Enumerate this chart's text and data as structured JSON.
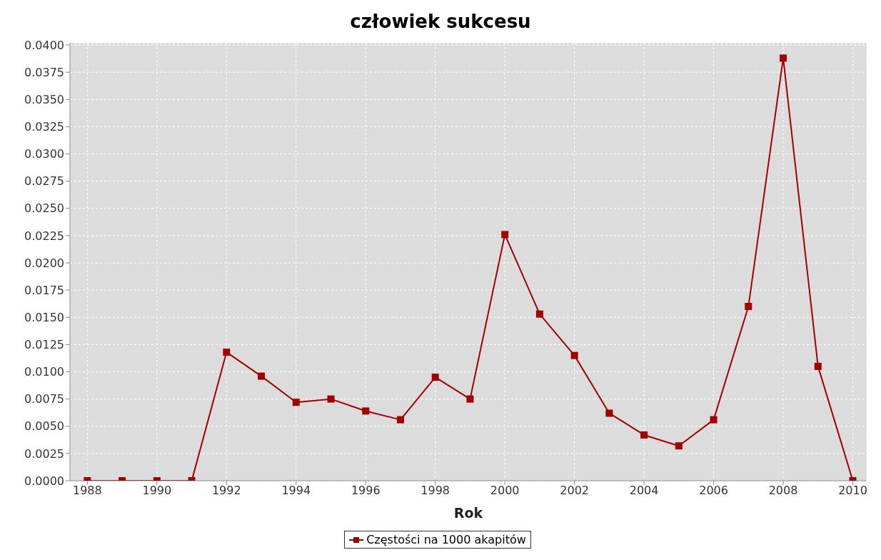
{
  "chart_data": {
    "type": "line",
    "title": "człowiek sukcesu",
    "xlabel": "Rok",
    "x": [
      1988,
      1989,
      1990,
      1991,
      1992,
      1993,
      1994,
      1995,
      1996,
      1997,
      1998,
      1999,
      2000,
      2001,
      2002,
      2003,
      2004,
      2005,
      2006,
      2007,
      2008,
      2009,
      2010
    ],
    "series": [
      {
        "name": "Częstości na 1000 akapitów",
        "color": "#a00000",
        "values": [
          0,
          0,
          0,
          0,
          0.0118,
          0.0096,
          0.0072,
          0.0075,
          0.0064,
          0.0056,
          0.0095,
          0.0075,
          0.0226,
          0.0153,
          0.0115,
          0.0062,
          0.0042,
          0.0032,
          0.0056,
          0.016,
          0.0388,
          0.0105,
          0
        ]
      }
    ],
    "xlim": [
      1987.5,
      2010.4
    ],
    "xticks": [
      1988,
      1990,
      1992,
      1994,
      1996,
      1998,
      2000,
      2002,
      2004,
      2006,
      2008,
      2010
    ],
    "ylim": [
      0,
      0.0402
    ],
    "yticks": [
      {
        "value": 0,
        "label": "0.0000"
      },
      0.0025,
      {
        "value": 0.005,
        "label": "0.0050"
      },
      0.0075,
      {
        "value": 0.01,
        "label": "0.0100"
      },
      0.0125,
      {
        "value": 0.015,
        "label": "0.0150"
      },
      0.0175,
      {
        "value": 0.02,
        "label": "0.0200"
      },
      0.0225,
      {
        "value": 0.025,
        "label": "0.0250"
      },
      0.0275,
      {
        "value": 0.03,
        "label": "0.0300"
      },
      0.0325,
      {
        "value": 0.035,
        "label": "0.0350"
      },
      0.0375,
      {
        "value": 0.04,
        "label": "0.0400"
      }
    ],
    "grid": true,
    "legend": "bottom",
    "marker": "square",
    "line_style": "solid"
  }
}
